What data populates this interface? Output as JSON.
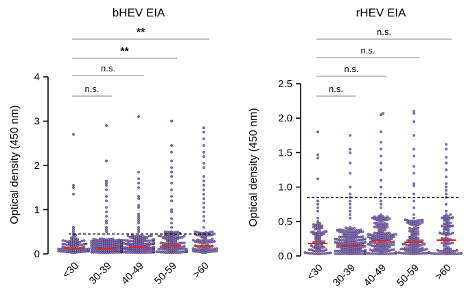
{
  "chart_data": [
    {
      "type": "scatter",
      "title": "bHEV EIA",
      "ylabel": "Optical density (450 nm)",
      "categories": [
        "<30",
        "30-39",
        "40-49",
        "50-59",
        ">60"
      ],
      "ylim": [
        0,
        4
      ],
      "yticks": [
        0,
        1,
        2,
        3,
        4
      ],
      "ytick_labels": [
        "0",
        "1",
        "2",
        "3",
        "4"
      ],
      "cutoff": 0.45,
      "medians": [
        0.13,
        0.12,
        0.15,
        0.19,
        0.18
      ],
      "series": [
        {
          "name": "<30",
          "n": 90,
          "high_values": [
            2.7,
            1.55,
            1.5,
            1.35,
            0.6,
            0.55,
            0.5,
            0.45,
            0.42,
            0.4
          ]
        },
        {
          "name": "30-39",
          "n": 210,
          "high_values": [
            2.9,
            2.1,
            1.65,
            1.6,
            1.55,
            1.45,
            1.3,
            1.2,
            1.05,
            0.95,
            0.85,
            0.75,
            0.7,
            0.6,
            0.55,
            0.5
          ]
        },
        {
          "name": "40-49",
          "n": 180,
          "high_values": [
            3.1,
            1.85,
            1.7,
            1.6,
            1.5,
            1.3,
            1.25,
            1.1,
            1.05,
            0.9,
            0.85,
            0.8,
            0.75,
            0.7,
            0.6,
            0.55,
            0.5
          ]
        },
        {
          "name": "50-59",
          "n": 130,
          "high_values": [
            3.0,
            2.45,
            2.3,
            2.1,
            1.95,
            1.85,
            1.75,
            1.6,
            1.45,
            1.3,
            1.2,
            1.0,
            0.95,
            0.8,
            0.7,
            0.6,
            0.5
          ]
        },
        {
          "name": ">60",
          "n": 100,
          "high_values": [
            2.85,
            2.75,
            2.6,
            2.45,
            2.3,
            2.2,
            2.05,
            1.95,
            1.75,
            1.65,
            1.55,
            1.45,
            1.35,
            1.25,
            1.15,
            1.05,
            0.95,
            0.85,
            0.75,
            0.6,
            0.5
          ]
        }
      ],
      "significance": [
        {
          "from": 0,
          "to": 1,
          "label": "n.s."
        },
        {
          "from": 0,
          "to": 2,
          "label": "n.s."
        },
        {
          "from": 0,
          "to": 3,
          "label": "**"
        },
        {
          "from": 0,
          "to": 4,
          "label": "**"
        }
      ]
    },
    {
      "type": "scatter",
      "title": "rHEV EIA",
      "ylabel": "Optical density (450 nm)",
      "categories": [
        "<30",
        "30-39",
        "40-49",
        "50-59",
        ">60"
      ],
      "ylim": [
        0,
        2.5
      ],
      "yticks": [
        0,
        0.5,
        1,
        1.5,
        2,
        2.5
      ],
      "ytick_labels": [
        "0.0",
        "0.5",
        "1.0",
        "1.5",
        "2.0",
        "2.5"
      ],
      "cutoff": 0.85,
      "medians": [
        0.18,
        0.15,
        0.22,
        0.2,
        0.23
      ],
      "series": [
        {
          "name": "<30",
          "n": 90,
          "high_values": [
            1.8,
            1.47,
            1.42,
            1.12,
            0.8,
            0.75,
            0.7,
            0.65,
            0.55,
            0.5
          ]
        },
        {
          "name": "30-39",
          "n": 210,
          "high_values": [
            1.75,
            1.55,
            1.5,
            1.35,
            1.2,
            1.0,
            0.9,
            0.85,
            0.8,
            0.75,
            0.7,
            0.65,
            0.6,
            0.55
          ]
        },
        {
          "name": "40-49",
          "n": 180,
          "high_values": [
            2.07,
            2.05,
            1.8,
            1.65,
            1.55,
            1.45,
            1.35,
            1.25,
            1.1,
            1.0,
            0.9,
            0.8,
            0.75,
            0.7,
            0.6,
            0.55
          ]
        },
        {
          "name": "50-59",
          "n": 130,
          "high_values": [
            2.1,
            2.07,
            1.95,
            1.75,
            1.55,
            1.45,
            1.3,
            1.2,
            1.05,
            1.02,
            0.9,
            0.8,
            0.7,
            0.6,
            0.55
          ]
        },
        {
          "name": ">60",
          "n": 100,
          "high_values": [
            1.62,
            1.55,
            1.43,
            1.35,
            1.25,
            1.15,
            1.05,
            1.0,
            0.95,
            0.9,
            0.85,
            0.75,
            0.65,
            0.6,
            0.55
          ]
        }
      ],
      "significance": [
        {
          "from": 0,
          "to": 1,
          "label": "n.s."
        },
        {
          "from": 0,
          "to": 2,
          "label": "n.s."
        },
        {
          "from": 0,
          "to": 3,
          "label": "n.s."
        },
        {
          "from": 0,
          "to": 4,
          "label": "n.s."
        }
      ]
    }
  ],
  "colors": {
    "dot_fill": "#8a72b8",
    "dot_stroke": "#3a2d5a",
    "median": "#e8231f",
    "bracket": "#9a9a9a",
    "cutoff": "#000000"
  }
}
